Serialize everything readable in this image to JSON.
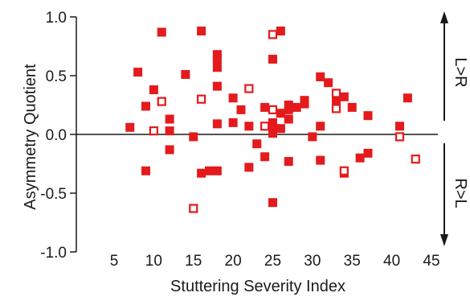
{
  "chart_data": {
    "type": "scatter",
    "title": "",
    "xlabel": "Stuttering Severity Index",
    "ylabel": "Asymmetry Quotient",
    "xlim": [
      5,
      45
    ],
    "ylim": [
      -1.0,
      1.0
    ],
    "x_ticks": [
      "5",
      "10",
      "15",
      "20",
      "25",
      "30",
      "35",
      "40",
      "45"
    ],
    "y_ticks": [
      "1.0",
      "0.5",
      "0.0",
      "-0.5",
      "-1.0"
    ],
    "grid": false,
    "side_labels": {
      "upper": "L>R",
      "lower": "R>L"
    },
    "colors": {
      "marker": "#e41a1c",
      "axis": "#1a1a1a"
    },
    "series": [
      {
        "marker": "filled-square",
        "points": [
          [
            7,
            0.06
          ],
          [
            8,
            0.53
          ],
          [
            9,
            0.24
          ],
          [
            9,
            -0.31
          ],
          [
            10,
            0.38
          ],
          [
            11,
            0.87
          ],
          [
            12,
            0.13
          ],
          [
            12,
            0.03
          ],
          [
            12,
            -0.13
          ],
          [
            14,
            0.51
          ],
          [
            15,
            -0.02
          ],
          [
            16,
            0.88
          ],
          [
            16,
            -0.33
          ],
          [
            17,
            -0.31
          ],
          [
            18,
            0.68
          ],
          [
            18,
            0.64
          ],
          [
            18,
            0.57
          ],
          [
            18,
            0.41
          ],
          [
            18,
            0.09
          ],
          [
            18,
            -0.31
          ],
          [
            20,
            0.31
          ],
          [
            20,
            0.1
          ],
          [
            21,
            0.21
          ],
          [
            22,
            0.07
          ],
          [
            22,
            -0.28
          ],
          [
            23,
            -0.08
          ],
          [
            24,
            0.23
          ],
          [
            24,
            -0.19
          ],
          [
            25,
            0.64
          ],
          [
            25,
            0.1
          ],
          [
            25,
            0.06
          ],
          [
            25,
            0.01
          ],
          [
            25,
            -0.58
          ],
          [
            26,
            0.88
          ],
          [
            26,
            0.18
          ],
          [
            26,
            0.05
          ],
          [
            27,
            0.25
          ],
          [
            27,
            0.21
          ],
          [
            27,
            0.13
          ],
          [
            27,
            -0.23
          ],
          [
            28,
            0.23
          ],
          [
            29,
            0.29
          ],
          [
            29,
            0.26
          ],
          [
            30,
            -0.02
          ],
          [
            31,
            0.49
          ],
          [
            31,
            0.07
          ],
          [
            31,
            -0.22
          ],
          [
            32,
            0.44
          ],
          [
            33,
            0.29
          ],
          [
            34,
            0.32
          ],
          [
            34,
            -0.33
          ],
          [
            35,
            0.23
          ],
          [
            36,
            -0.2
          ],
          [
            37,
            -0.16
          ],
          [
            37,
            0.16
          ],
          [
            41,
            0.07
          ],
          [
            42,
            0.31
          ]
        ]
      },
      {
        "marker": "open-square",
        "points": [
          [
            10,
            0.03
          ],
          [
            11,
            0.28
          ],
          [
            15,
            -0.63
          ],
          [
            16,
            0.3
          ],
          [
            22,
            0.39
          ],
          [
            24,
            0.07
          ],
          [
            25,
            0.85
          ],
          [
            25,
            0.21
          ],
          [
            33,
            0.35
          ],
          [
            33,
            0.22
          ],
          [
            34,
            -0.31
          ],
          [
            41,
            -0.02
          ],
          [
            43,
            -0.21
          ]
        ]
      }
    ]
  }
}
